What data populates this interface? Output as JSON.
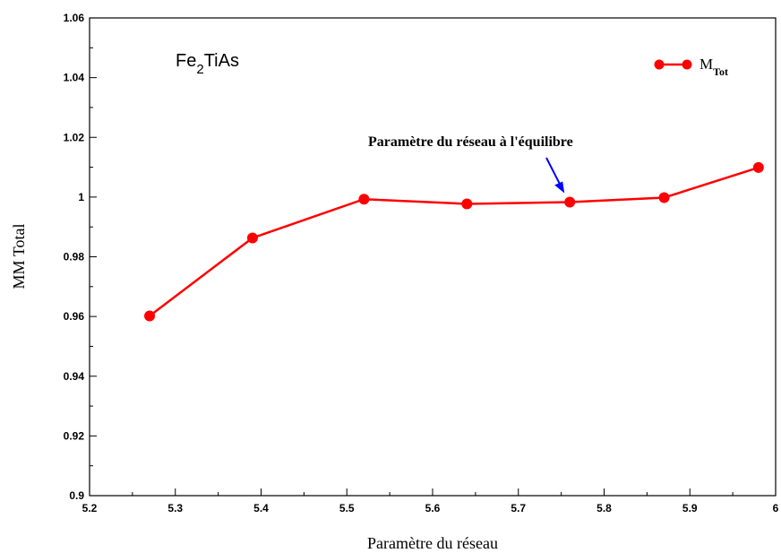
{
  "chart_data": {
    "type": "line",
    "title": {
      "main": "Fe",
      "sub": "2",
      "rest": "TiAs"
    },
    "xlabel": "Paramètre du réseau",
    "ylabel": "MM Total",
    "xlim": [
      5.2,
      6.0
    ],
    "ylim": [
      0.9,
      1.06
    ],
    "xticks": [
      "5.2",
      "5.3",
      "5.4",
      "5.5",
      "5.6",
      "5.7",
      "5.8",
      "5.9",
      "6"
    ],
    "yticks": [
      "0.9",
      "0.92",
      "0.94",
      "0.96",
      "0.98",
      "1",
      "1.02",
      "1.04",
      "1.06"
    ],
    "grid": false,
    "legend_position": "top-right",
    "series": [
      {
        "name": {
          "main": "M",
          "sub": "Tot"
        },
        "color": "#ff0000",
        "x": [
          5.27,
          5.39,
          5.52,
          5.64,
          5.76,
          5.87,
          5.98
        ],
        "y": [
          0.9602,
          0.9863,
          0.9993,
          0.9977,
          0.9983,
          0.9998,
          1.0099
        ]
      }
    ],
    "annotation": {
      "text": "Paramètre du réseau à l'équilibre",
      "target_x": 5.76,
      "target_y": 0.9983,
      "arrow_color": "#0000ff"
    }
  }
}
